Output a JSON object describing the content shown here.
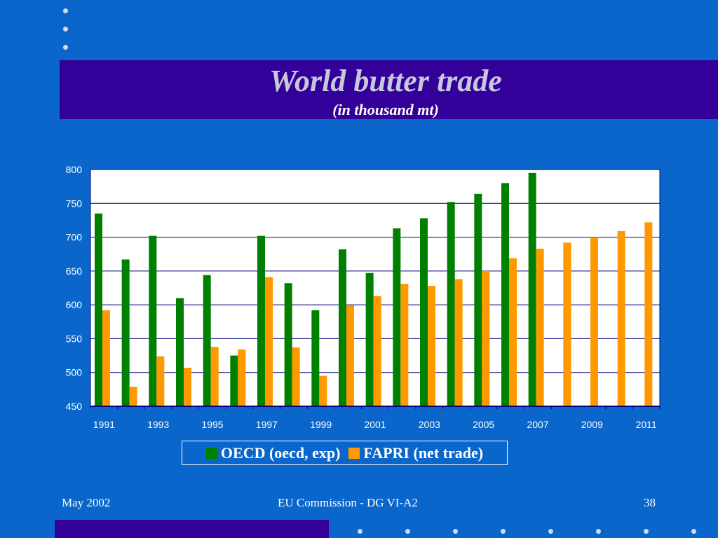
{
  "slide": {
    "title": "World butter trade",
    "subtitle": "(in thousand mt)",
    "footer_left": "May 2002",
    "footer_center": "EU Commission - DG VI-A2",
    "footer_right": "38"
  },
  "colors": {
    "background": "#0b66cc",
    "band": "#330099",
    "oecd": "#008000",
    "fapri": "#ff9900",
    "plot_bg": "#ffffff",
    "gridline": "#000080"
  },
  "chart_data": {
    "type": "bar",
    "categories": [
      "1991",
      "1992",
      "1993",
      "1994",
      "1995",
      "1996",
      "1997",
      "1998",
      "1999",
      "2000",
      "2001",
      "2002",
      "2003",
      "2004",
      "2005",
      "2006",
      "2007",
      "2008",
      "2009",
      "2010",
      "2011"
    ],
    "x_tick_labels": [
      "1991",
      "1993",
      "1995",
      "1997",
      "1999",
      "2001",
      "2003",
      "2005",
      "2007",
      "2009",
      "2011"
    ],
    "y_tick_labels": [
      "800",
      "750",
      "700",
      "650",
      "600",
      "550",
      "500",
      "450"
    ],
    "ylim": [
      450,
      800
    ],
    "grid": true,
    "legend_position": "bottom",
    "series": [
      {
        "name": "OECD (oecd, exp)",
        "values": [
          735,
          667,
          702,
          610,
          644,
          525,
          702,
          632,
          592,
          682,
          647,
          713,
          728,
          752,
          764,
          780,
          795,
          null,
          null,
          null,
          null
        ]
      },
      {
        "name": "FAPRI (net trade)",
        "values": [
          592,
          479,
          524,
          507,
          538,
          534,
          641,
          537,
          495,
          599,
          613,
          631,
          628,
          638,
          650,
          669,
          683,
          692,
          700,
          709,
          722
        ]
      }
    ]
  }
}
